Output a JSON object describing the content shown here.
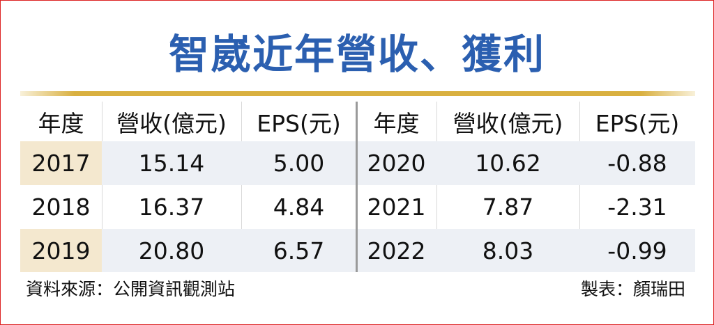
{
  "header": {
    "title": "智崴近年營收、獲利"
  },
  "table": {
    "columns": [
      "年度",
      "營收(億元)",
      "EPS(元)",
      "年度",
      "營收(億元)",
      "EPS(元)"
    ],
    "rows": [
      [
        "2017",
        "15.14",
        "5.00",
        "2020",
        "10.62",
        "-0.88"
      ],
      [
        "2018",
        "16.37",
        "4.84",
        "2021",
        "7.87",
        "-2.31"
      ],
      [
        "2019",
        "20.80",
        "6.57",
        "2022",
        "8.03",
        "-0.99"
      ]
    ]
  },
  "footer": {
    "source": "資料來源：公開資訊觀測站",
    "credit": "製表：顏瑞田"
  }
}
